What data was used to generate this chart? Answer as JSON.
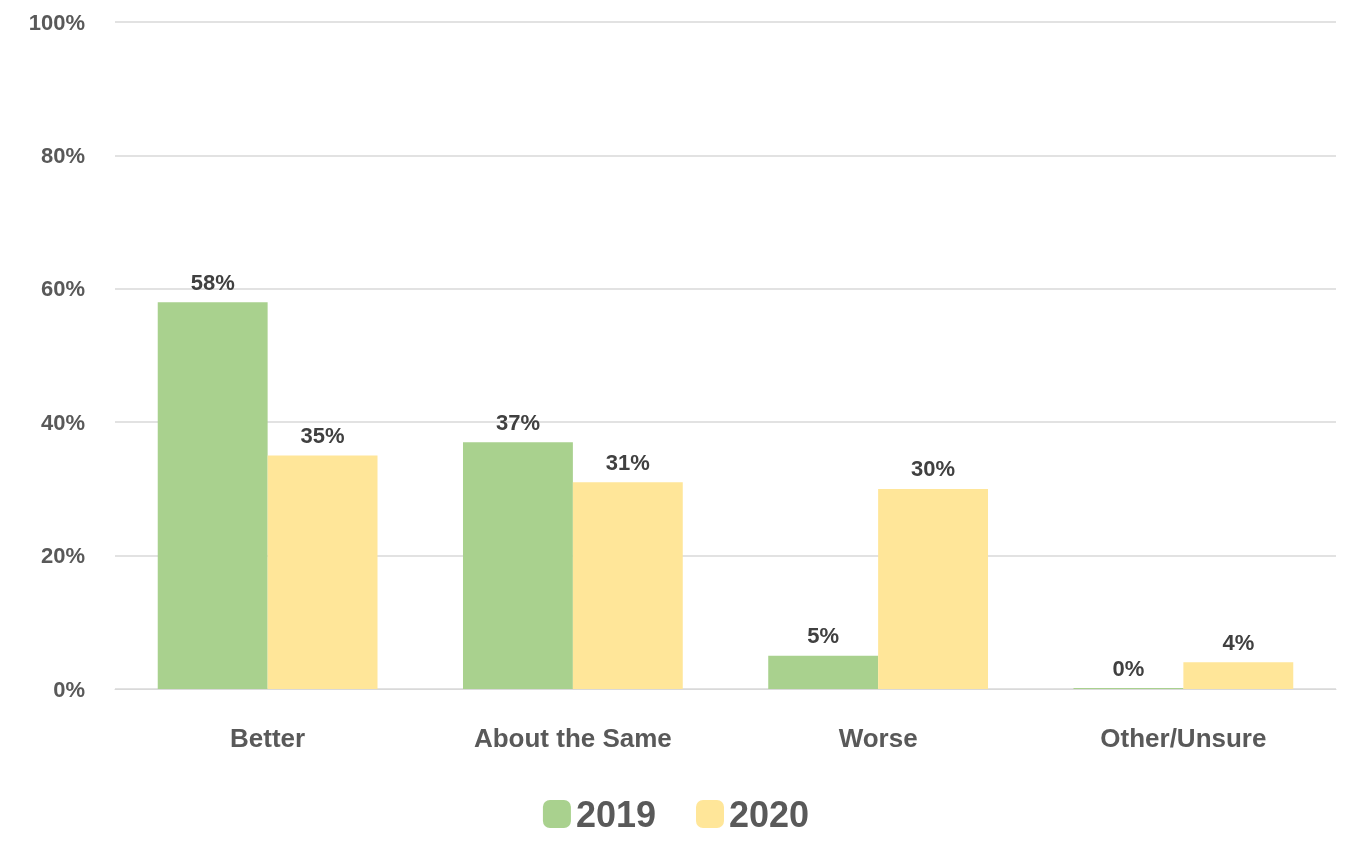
{
  "chart_data": {
    "type": "bar",
    "categories": [
      "Better",
      "About the Same",
      "Worse",
      "Other/Unsure"
    ],
    "series": [
      {
        "name": "2019",
        "color": "#a9d18e",
        "values": [
          58,
          37,
          5,
          0
        ],
        "value_labels": [
          "58%",
          "37%",
          "5%",
          "0%"
        ]
      },
      {
        "name": "2020",
        "color": "#ffe699",
        "values": [
          35,
          31,
          30,
          4
        ],
        "value_labels": [
          "35%",
          "31%",
          "30%",
          "4%"
        ]
      }
    ],
    "ylim": [
      0,
      100
    ],
    "yticks": [
      {
        "value": 0,
        "label": "0%"
      },
      {
        "value": 20,
        "label": "20%"
      },
      {
        "value": 40,
        "label": "40%"
      },
      {
        "value": 60,
        "label": "60%"
      },
      {
        "value": 80,
        "label": "80%"
      },
      {
        "value": 100,
        "label": "100%"
      }
    ],
    "grid": "y",
    "legend": "bottom"
  }
}
